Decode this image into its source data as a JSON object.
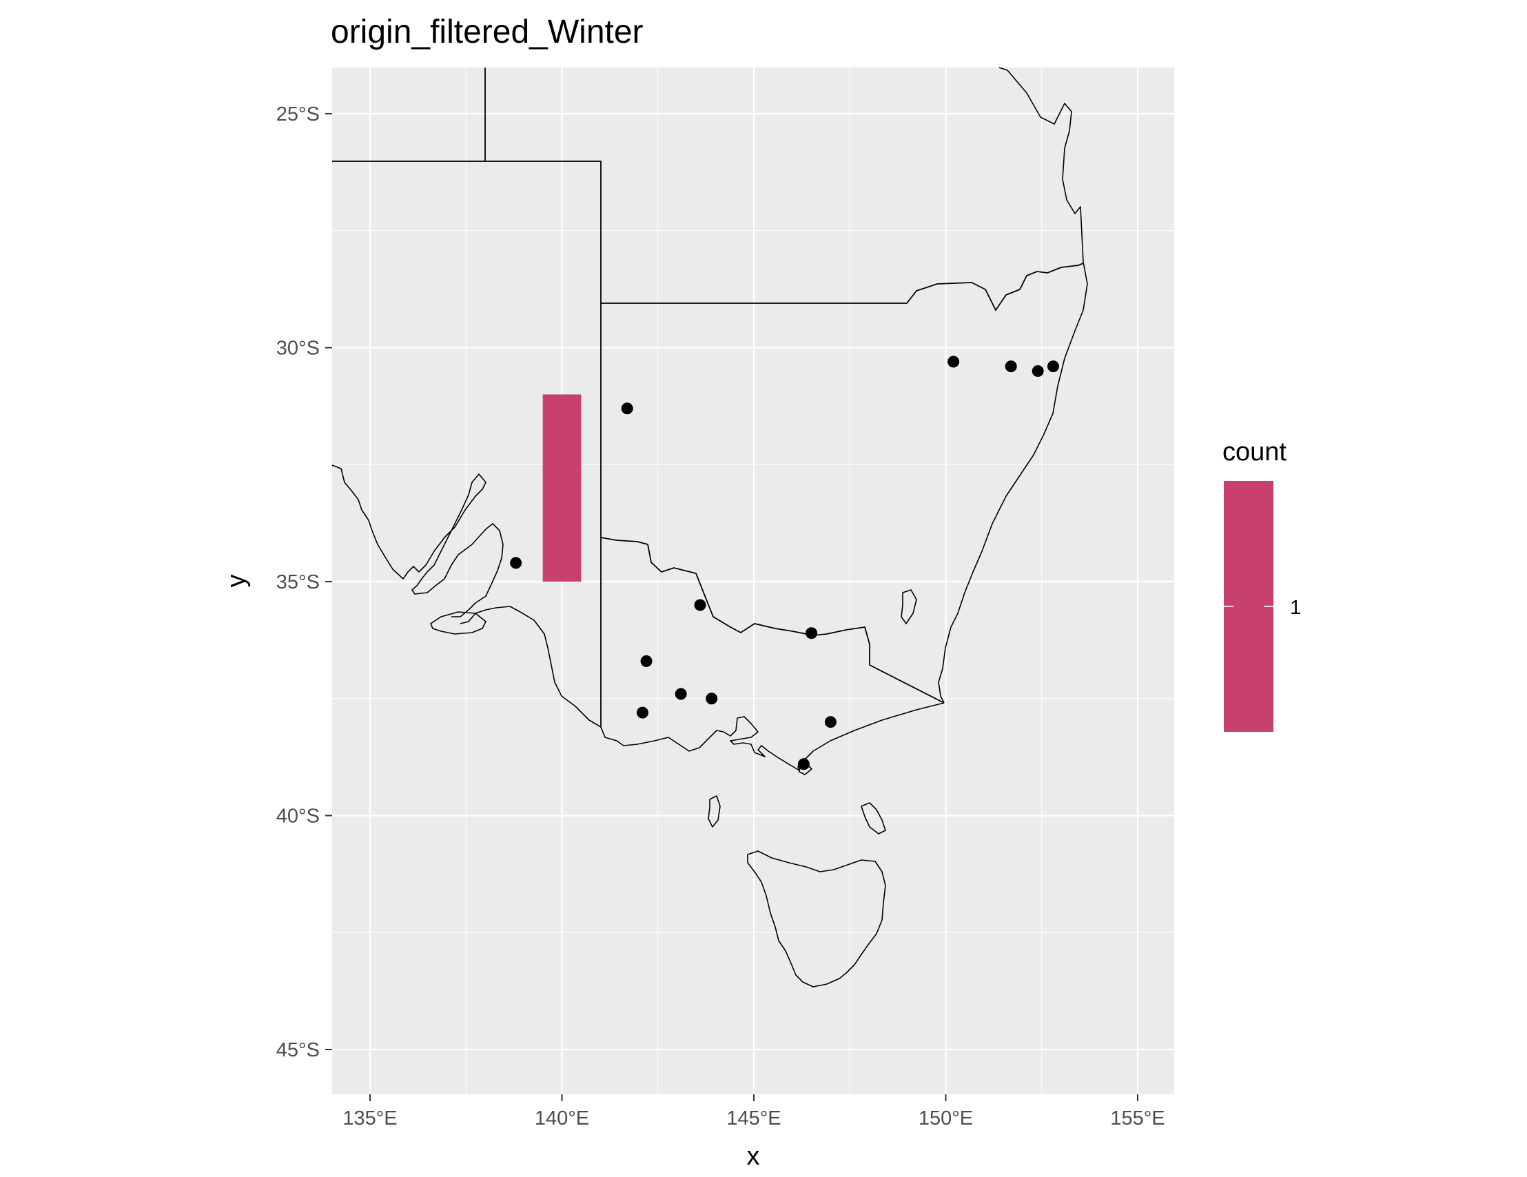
{
  "chart_data": {
    "type": "scatter",
    "title": "origin_filtered_Winter",
    "xlabel": "x",
    "ylabel": "y",
    "xlim": [
      134,
      156
    ],
    "ylim": [
      -46,
      -24
    ],
    "x_ticks": [
      135,
      140,
      145,
      150,
      155
    ],
    "y_ticks": [
      -25,
      -30,
      -35,
      -40,
      -45
    ],
    "x_tick_labels": [
      "135°E",
      "140°E",
      "145°E",
      "150°E",
      "155°E"
    ],
    "y_tick_labels": [
      "25°S",
      "30°S",
      "35°S",
      "40°S",
      "45°S"
    ],
    "grid": true,
    "legend": {
      "title": "count",
      "labels": [
        "1"
      ],
      "position": "right"
    },
    "tile": {
      "x_range": [
        139.5,
        140.5
      ],
      "y_range": [
        -35,
        -31
      ],
      "count": 1,
      "color": "#c8406e"
    },
    "points": [
      {
        "x": 138.8,
        "y": -34.6
      },
      {
        "x": 141.7,
        "y": -31.3
      },
      {
        "x": 143.6,
        "y": -35.5
      },
      {
        "x": 146.5,
        "y": -36.1
      },
      {
        "x": 142.2,
        "y": -36.7
      },
      {
        "x": 143.1,
        "y": -37.4
      },
      {
        "x": 143.9,
        "y": -37.5
      },
      {
        "x": 142.1,
        "y": -37.8
      },
      {
        "x": 147.0,
        "y": -38.0
      },
      {
        "x": 146.3,
        "y": -38.9
      },
      {
        "x": 150.2,
        "y": -30.3
      },
      {
        "x": 151.7,
        "y": -30.4
      },
      {
        "x": 152.4,
        "y": -30.5
      },
      {
        "x": 152.8,
        "y": -30.4
      }
    ],
    "point_color": "#000000",
    "panel_background": "#ebebeb",
    "grid_color": "#ffffff"
  }
}
